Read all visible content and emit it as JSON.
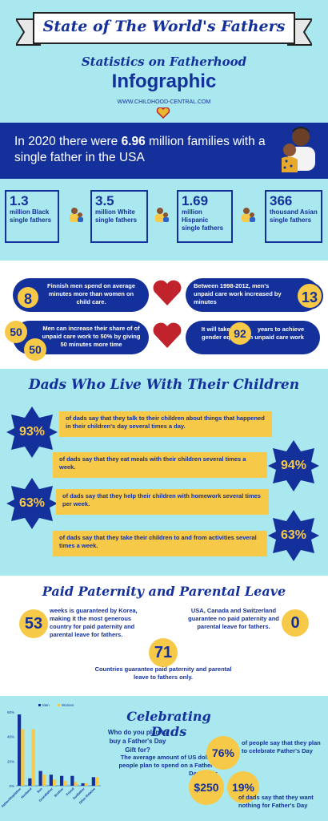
{
  "header": {
    "banner_title": "State of The World's Fathers",
    "subtitle": "Statistics on Fatherhood",
    "title": "Infographic",
    "url": "WWW.CHILDHOOD-CENTRAL.COM"
  },
  "intro": {
    "prefix": "In 2020 there were ",
    "highlight": "6.96",
    "suffix": " million families with a single father in the USA"
  },
  "stats": [
    {
      "number": "1.3",
      "label": "million Black single fathers"
    },
    {
      "number": "3.5",
      "label": "million White single fathers"
    },
    {
      "number": "1.69",
      "label": "million Hispanic single fathers"
    },
    {
      "number": "366",
      "label": "thousand Asian single fathers"
    }
  ],
  "care": {
    "finnish_text": "Finnish men spend on average minutes more than women on child care.",
    "finnish_num": "8",
    "between_text": "Between 1998-2012, men's unpaid care work increased by minutes",
    "between_num": "13",
    "increase_text": "Men can increase their share of of unpaid care work to 50% by giving 50 minutes more time",
    "increase_num_a": "50",
    "increase_num_b": "50",
    "years_pre": "It will take",
    "years_num": "92",
    "years_post": "years to achieve gender equality in unpaid care work"
  },
  "dads": {
    "heading": "Dads Who Live With Their Children",
    "items": [
      {
        "pct": "93%",
        "text": "of dads say that they talk to their children about things that happened in their children's day several times a day."
      },
      {
        "pct": "94%",
        "text": "of dads say that they eat meals with their children several times a week."
      },
      {
        "pct": "63%",
        "text": "of dads say that they help their children with homework several times per week."
      },
      {
        "pct": "63%",
        "text": "of dads say that they take their children to and from activities several times a week."
      }
    ]
  },
  "leave": {
    "heading": "Paid Paternity and Parental Leave",
    "korea_num": "53",
    "korea_text": "weeks is guaranteed by Korea, making it the most generous country for paid paternity and parental leave for fathers.",
    "zero_num": "0",
    "zero_text": "USA, Canada and Switzerland guarantee no paid paternity and parental leave for fathers.",
    "countries_num": "71",
    "countries_text": "Countries guarantee paid paternity and parental leave to fathers only."
  },
  "celebrate": {
    "heading": "Celebrating Dads",
    "question": "Who do you plan to buy a Father's Day Gift for?",
    "spend_text": "The average amount of US dollars people plan to spend on a Father's Day gift is",
    "spend_num": "$250",
    "plan_num": "76%",
    "plan_text": "of people say that they plan to celebrate Father's Day",
    "nothing_num": "19%",
    "nothing_text": "of dads say that they want nothing for Father's Day"
  },
  "chart_data": {
    "type": "bar",
    "categories": [
      "Father/Stepfather",
      "Husband",
      "Son",
      "Grandfather",
      "Brother",
      "Friend",
      "Godfather",
      "Other Relative"
    ],
    "series": [
      {
        "name": "Men",
        "values": [
          58,
          6,
          12,
          9,
          8,
          8,
          2,
          7
        ]
      },
      {
        "name": "Women",
        "values": [
          46,
          46,
          9,
          5,
          4,
          3,
          2,
          7
        ]
      }
    ],
    "ylim": [
      0,
      60
    ],
    "yticks": [
      "0%",
      "20%",
      "40%",
      "60%"
    ],
    "colors": {
      "Men": "#14309a",
      "Women": "#f7c948"
    }
  }
}
